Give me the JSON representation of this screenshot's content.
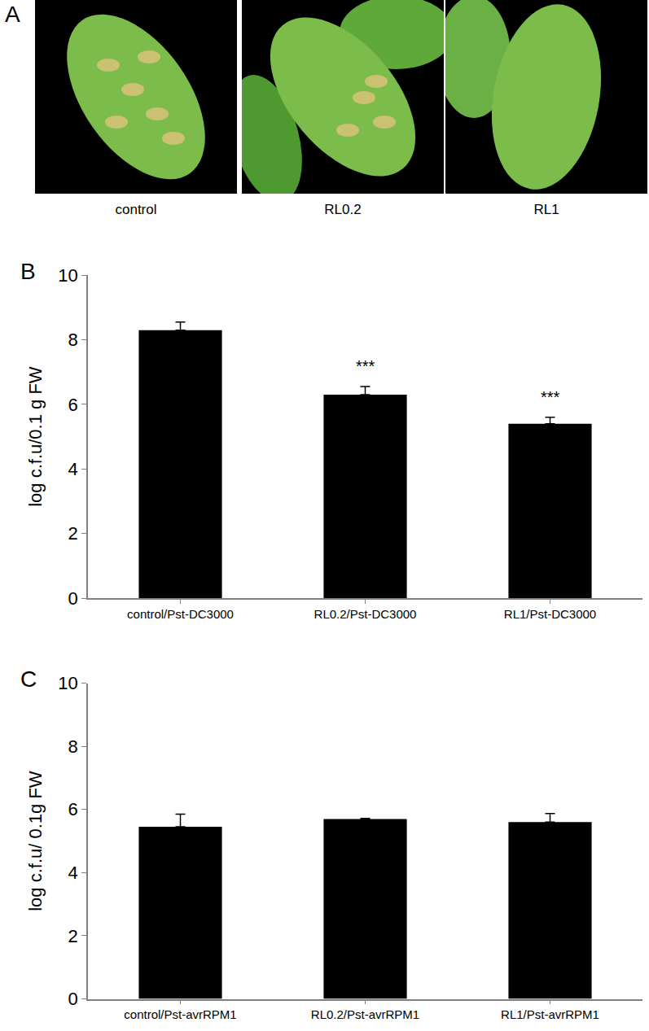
{
  "photo_panel": {
    "label": "A",
    "captions": [
      "control",
      "RL0.2",
      "RL1"
    ]
  },
  "chart_data": [
    {
      "type": "bar",
      "title": "B",
      "categories": [
        "control/Pst-DC3000",
        "RL0.2/Pst-DC3000",
        "RL1/Pst-DC3000"
      ],
      "values": [
        8.3,
        6.3,
        5.4
      ],
      "errors": [
        0.25,
        0.25,
        0.2
      ],
      "color": "#000000",
      "ylabel": "log c.f.u/0.1 g FW",
      "ylim": [
        0,
        10
      ],
      "yticks": [
        0,
        2,
        4,
        6,
        8,
        10
      ],
      "grid": false,
      "annotations": [
        {
          "category": "RL0.2/Pst-DC3000",
          "text": "***"
        },
        {
          "category": "RL1/Pst-DC3000",
          "text": "***"
        }
      ]
    },
    {
      "type": "bar",
      "title": "C",
      "categories": [
        "control/Pst-avrRPM1",
        "RL0.2/Pst-avrRPM1",
        "RL1/Pst-avrRPM1"
      ],
      "values": [
        5.45,
        5.7,
        5.6
      ],
      "errors": [
        0.4,
        0.02,
        0.27
      ],
      "color": "#000000",
      "ylabel": "log c.f.u/ 0.1g FW",
      "ylim": [
        0,
        10
      ],
      "yticks": [
        0,
        2,
        4,
        6,
        8,
        10
      ],
      "grid": false
    }
  ]
}
